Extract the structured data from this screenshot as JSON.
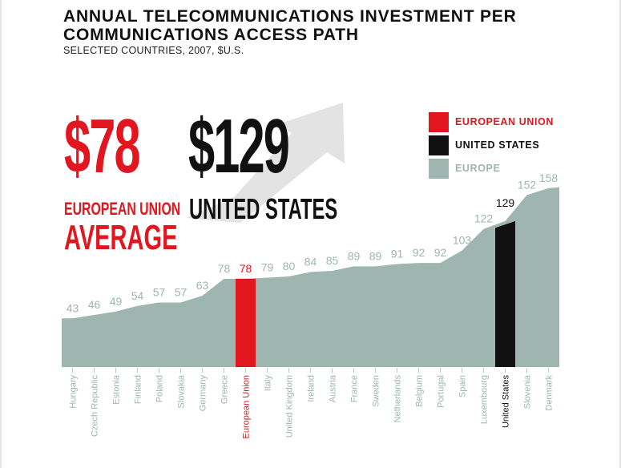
{
  "header": {
    "title": "ANNUAL TELECOMMUNICATIONS INVESTMENT PER COMMUNICATIONS ACCESS PATH",
    "subtitle": "SELECTED COUNTRIES, 2007, $U.S."
  },
  "callouts": {
    "eu_value": "$78",
    "eu_caption_line1": "EUROPEAN UNION",
    "eu_caption_line2": "AVERAGE",
    "us_value": "$129",
    "us_caption": "UNITED STATES"
  },
  "legend": [
    {
      "label": "EUROPEAN UNION",
      "color": "#e2161f"
    },
    {
      "label": "UNITED STATES",
      "color": "#111111"
    },
    {
      "label": "EUROPE",
      "color": "#9fb5b0"
    }
  ],
  "colors": {
    "eu": "#e2161f",
    "us": "#111111",
    "europe": "#9fb5b0",
    "arrow": "#e3e3e3"
  },
  "chart_data": {
    "type": "area",
    "title": "ANNUAL TELECOMMUNICATIONS INVESTMENT PER COMMUNICATIONS ACCESS PATH",
    "subtitle": "SELECTED COUNTRIES, 2007, $U.S.",
    "categories": [
      "Hungary",
      "Czech Republic",
      "Estonia",
      "Finland",
      "Poland",
      "Slovakia",
      "Germany",
      "Greece",
      "European Union",
      "Italy",
      "United Kingdom",
      "Ireland",
      "Austria",
      "France",
      "Sweden",
      "Netherlands",
      "Belgium",
      "Portugal",
      "Spain",
      "Luxembourg",
      "United States",
      "Slovenia",
      "Denmark"
    ],
    "values": [
      43,
      46,
      49,
      54,
      57,
      57,
      63,
      78,
      78,
      79,
      80,
      84,
      85,
      89,
      89,
      91,
      92,
      92,
      103,
      122,
      129,
      152,
      158
    ],
    "highlight": {
      "European Union": "eu",
      "United States": "us"
    },
    "ylim": [
      0,
      160
    ],
    "grid": false,
    "legend_position": "top-right"
  }
}
